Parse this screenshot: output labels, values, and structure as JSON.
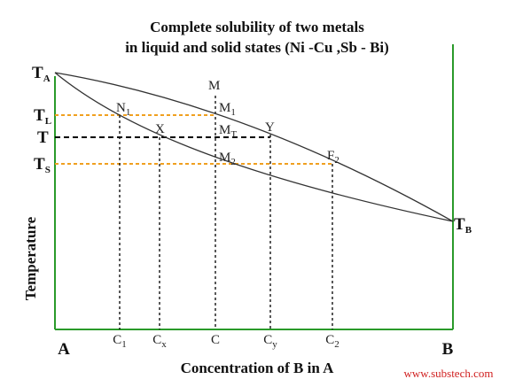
{
  "title": [
    "Complete solubility of two metals",
    "in liquid and solid states (Ni -Cu ,Sb - Bi)"
  ],
  "y_axis_label": "Temperature",
  "x_axis_label": "Concentration of B in A",
  "watermark": "www.substech.com",
  "temperature_labels": [
    {
      "main": "T",
      "sub": "A"
    },
    {
      "main": "T",
      "sub": "L"
    },
    {
      "main": "T",
      "sub": ""
    },
    {
      "main": "T",
      "sub": "S"
    },
    {
      "main": "T",
      "sub": "B"
    }
  ],
  "points": [
    {
      "main": "M",
      "sub": ""
    },
    {
      "main": "N",
      "sub": "1"
    },
    {
      "main": "M",
      "sub": "1"
    },
    {
      "main": "X",
      "sub": ""
    },
    {
      "main": "M",
      "sub": "T"
    },
    {
      "main": "Y",
      "sub": ""
    },
    {
      "main": "M",
      "sub": "2"
    },
    {
      "main": "F",
      "sub": "2"
    }
  ],
  "x_labels": [
    {
      "main": "A",
      "sub": ""
    },
    {
      "main": "C",
      "sub": "1"
    },
    {
      "main": "C",
      "sub": "x"
    },
    {
      "main": "C",
      "sub": ""
    },
    {
      "main": "C",
      "sub": "y"
    },
    {
      "main": "C",
      "sub": "2"
    },
    {
      "main": "B",
      "sub": ""
    }
  ]
}
